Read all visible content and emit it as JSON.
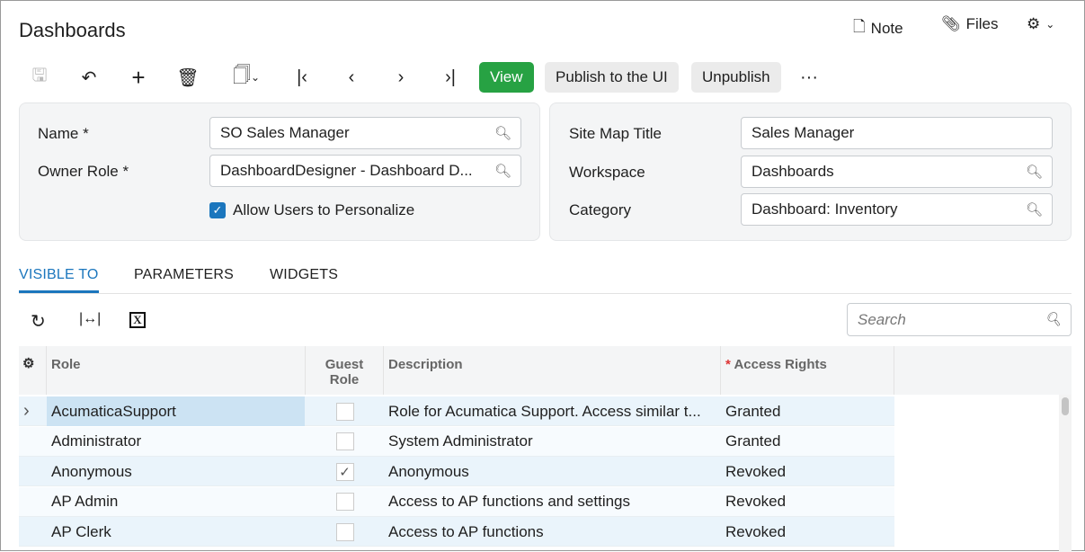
{
  "header": {
    "title": "Dashboards",
    "note": "Note",
    "files": "Files"
  },
  "toolbar": {
    "view": "View",
    "publish": "Publish to the UI",
    "unpublish": "Unpublish",
    "more": "···"
  },
  "form": {
    "name_label": "Name *",
    "name_value": "SO Sales Manager",
    "owner_label": "Owner Role *",
    "owner_value": "DashboardDesigner - Dashboard D...",
    "allow_label": "Allow Users to Personalize",
    "allow_checked": true,
    "sitemap_label": "Site Map Title",
    "sitemap_value": "Sales Manager",
    "workspace_label": "Workspace",
    "workspace_value": "Dashboards",
    "category_label": "Category",
    "category_value": "Dashboard: Inventory"
  },
  "tabs": [
    {
      "label": "VISIBLE TO",
      "active": true
    },
    {
      "label": "PARAMETERS"
    },
    {
      "label": "WIDGETS"
    }
  ],
  "grid": {
    "search_placeholder": "Search",
    "columns": [
      "Role",
      "Guest Role",
      "Description",
      "Access Rights"
    ],
    "rows": [
      {
        "role": "AcumaticaSupport",
        "guest": false,
        "description": "Role for Acumatica Support. Access similar t...",
        "access": "Granted"
      },
      {
        "role": "Administrator",
        "guest": false,
        "description": "System Administrator",
        "access": "Granted"
      },
      {
        "role": "Anonymous",
        "guest": true,
        "description": "Anonymous",
        "access": "Revoked"
      },
      {
        "role": "AP Admin",
        "guest": false,
        "description": "Access to AP functions and settings",
        "access": "Revoked"
      },
      {
        "role": "AP Clerk",
        "guest": false,
        "description": "Access to AP functions",
        "access": "Revoked"
      }
    ]
  },
  "colors": {
    "accent": "#1b76bd",
    "view_button": "#27a243",
    "selected_row": "#cce3f3"
  }
}
